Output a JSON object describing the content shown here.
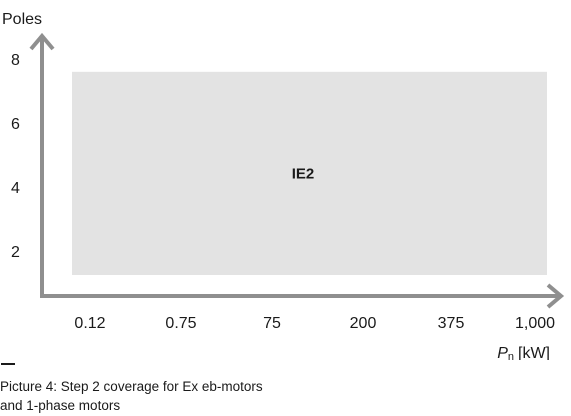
{
  "chart_data": {
    "type": "area",
    "title": "",
    "ylabel": "Poles",
    "xlabel": {
      "symbol": "P",
      "subscript": "n",
      "unit": "[kW]"
    },
    "x_ticks": [
      "0.12",
      "0.75",
      "75",
      "200",
      "375",
      "1,000"
    ],
    "y_ticks": [
      "2",
      "4",
      "6",
      "8"
    ],
    "ylim": [
      1,
      8
    ],
    "regions": [
      {
        "label": "IE2",
        "x_from": "0.12",
        "x_to": "1,000",
        "y_from": 1.25,
        "y_to": 7.6,
        "color": "#e3e3e3"
      }
    ],
    "grid": false,
    "legend": "none"
  },
  "caption": {
    "marker": "—",
    "lines": [
      "Picture 4: Step 2 coverage for Ex eb-motors",
      "and 1-phase motors"
    ]
  },
  "colors": {
    "axis": "#8f8f8f",
    "region": "#e3e3e3",
    "text": "#1a1a1a"
  }
}
